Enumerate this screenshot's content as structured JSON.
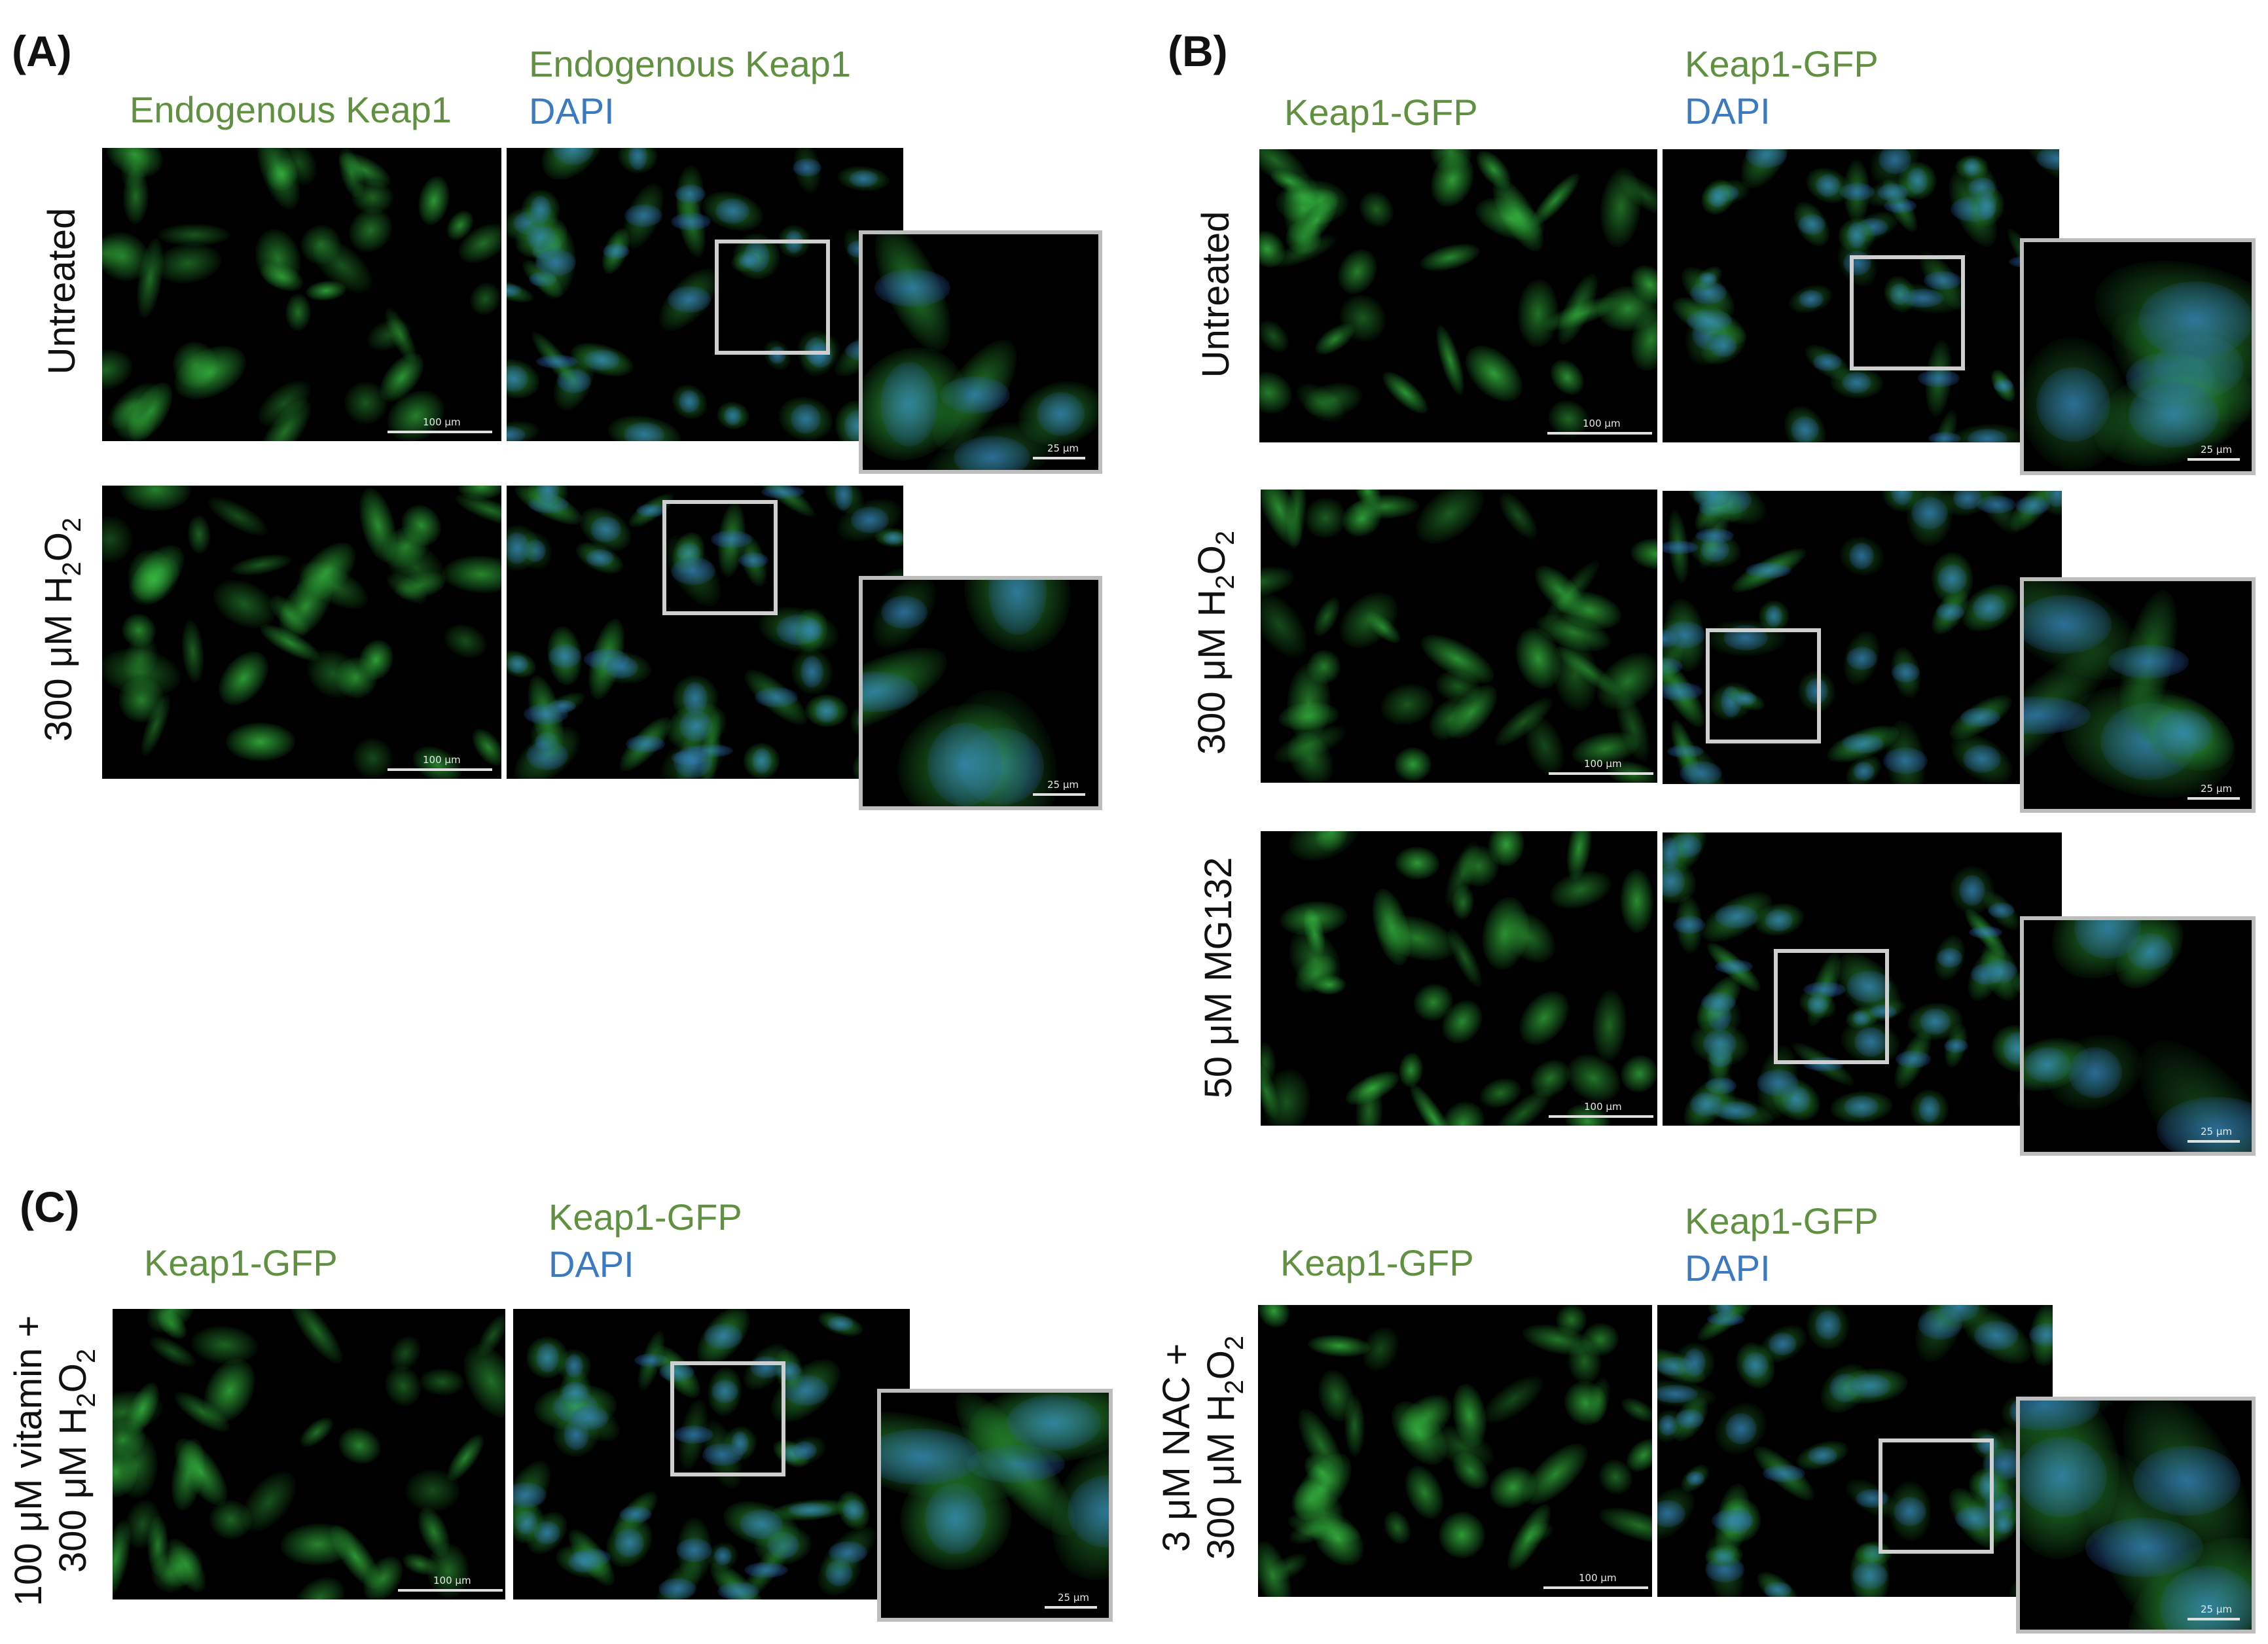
{
  "panels": {
    "A": {
      "letter": "(A)",
      "col1_label": "Endogenous Keap1",
      "col2_label_line1": "Endogenous Keap1",
      "col2_label_line2": "DAPI",
      "rows": [
        {
          "label": "Untreated",
          "scale_main": "100 μm",
          "scale_inset": "25 μm"
        },
        {
          "label_prefix": "300 μM H",
          "label_sub": "2",
          "label_mid": "O",
          "label_sub2": "2",
          "scale_main": "100 μm",
          "scale_inset": "25 μm"
        }
      ]
    },
    "B": {
      "letter": "(B)",
      "col1_label": "Keap1-GFP",
      "col2_label_line1": "Keap1-GFP",
      "col2_label_line2": "DAPI",
      "rows": [
        {
          "label": "Untreated",
          "scale_main": "100 μm",
          "scale_inset": "25 μm"
        },
        {
          "label_prefix": "300 μM H",
          "label_sub": "2",
          "label_mid": "O",
          "label_sub2": "2",
          "scale_main": "100 μm",
          "scale_inset": "25 μm"
        },
        {
          "label": "50 μM MG132",
          "scale_main": "100 μm",
          "scale_inset": "25 μm"
        }
      ]
    },
    "C": {
      "letter": "(C)",
      "left": {
        "col1_label": "Keap1-GFP",
        "col2_label_line1": "Keap1-GFP",
        "col2_label_line2": "DAPI",
        "row_line1": "100 μM vitamin +",
        "row_line2_prefix": "300 μM H",
        "row_line2_sub": "2",
        "row_line2_mid": "O",
        "row_line2_sub2": "2",
        "scale_main": "100 μm",
        "scale_inset": "25 μm"
      },
      "right": {
        "col1_label": "Keap1-GFP",
        "col2_label_line1": "Keap1-GFP",
        "col2_label_line2": "DAPI",
        "row_line1": "3 μM NAC +",
        "row_line2_prefix": "300 μM H",
        "row_line2_sub": "2",
        "row_line2_mid": "O",
        "row_line2_sub2": "2",
        "scale_main": "100 μm",
        "scale_inset": "25 μm"
      }
    }
  },
  "colors": {
    "gfp_text": "#5f9140",
    "dapi_text": "#3c7ac0",
    "roi_box": "#cfcfcf",
    "inset_border": "#bdbdbd"
  }
}
